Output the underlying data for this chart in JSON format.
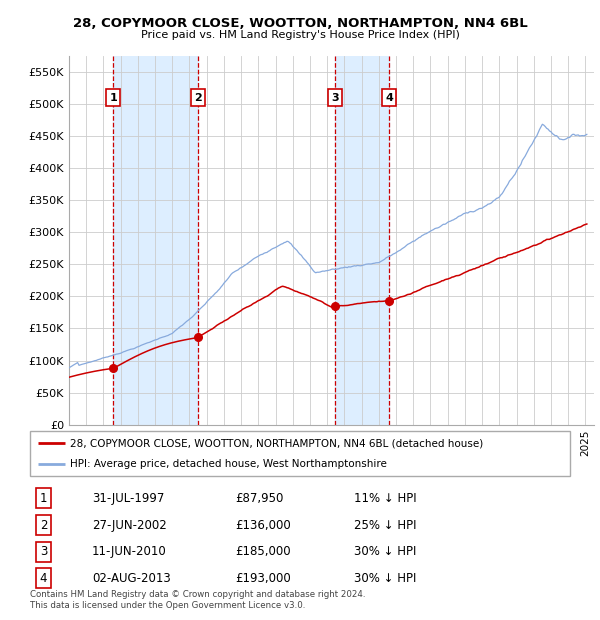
{
  "title": "28, COPYMOOR CLOSE, WOOTTON, NORTHAMPTON, NN4 6BL",
  "subtitle": "Price paid vs. HM Land Registry's House Price Index (HPI)",
  "background_color": "#ffffff",
  "plot_bg_color": "#ffffff",
  "grid_color": "#cccccc",
  "ylim": [
    0,
    575000
  ],
  "yticks": [
    0,
    50000,
    100000,
    150000,
    200000,
    250000,
    300000,
    350000,
    400000,
    450000,
    500000,
    550000
  ],
  "ytick_labels": [
    "£0",
    "£50K",
    "£100K",
    "£150K",
    "£200K",
    "£250K",
    "£300K",
    "£350K",
    "£400K",
    "£450K",
    "£500K",
    "£550K"
  ],
  "xlim_start": 1995.0,
  "xlim_end": 2025.5,
  "sale_dates": [
    1997.58,
    2002.49,
    2010.44,
    2013.59
  ],
  "sale_prices": [
    87950,
    136000,
    185000,
    193000
  ],
  "sale_labels": [
    "1",
    "2",
    "3",
    "4"
  ],
  "shade_ranges": [
    [
      1997.58,
      2002.49
    ],
    [
      2010.44,
      2013.59
    ]
  ],
  "shade_color": "#ddeeff",
  "vline_color": "#cc0000",
  "marker_color": "#cc0000",
  "hpi_color": "#88aadd",
  "price_color": "#cc0000",
  "legend_entries": [
    "28, COPYMOOR CLOSE, WOOTTON, NORTHAMPTON, NN4 6BL (detached house)",
    "HPI: Average price, detached house, West Northamptonshire"
  ],
  "table_data": [
    [
      "1",
      "31-JUL-1997",
      "£87,950",
      "11% ↓ HPI"
    ],
    [
      "2",
      "27-JUN-2002",
      "£136,000",
      "25% ↓ HPI"
    ],
    [
      "3",
      "11-JUN-2010",
      "£185,000",
      "30% ↓ HPI"
    ],
    [
      "4",
      "02-AUG-2013",
      "£193,000",
      "30% ↓ HPI"
    ]
  ],
  "footnote": "Contains HM Land Registry data © Crown copyright and database right 2024.\nThis data is licensed under the Open Government Licence v3.0."
}
